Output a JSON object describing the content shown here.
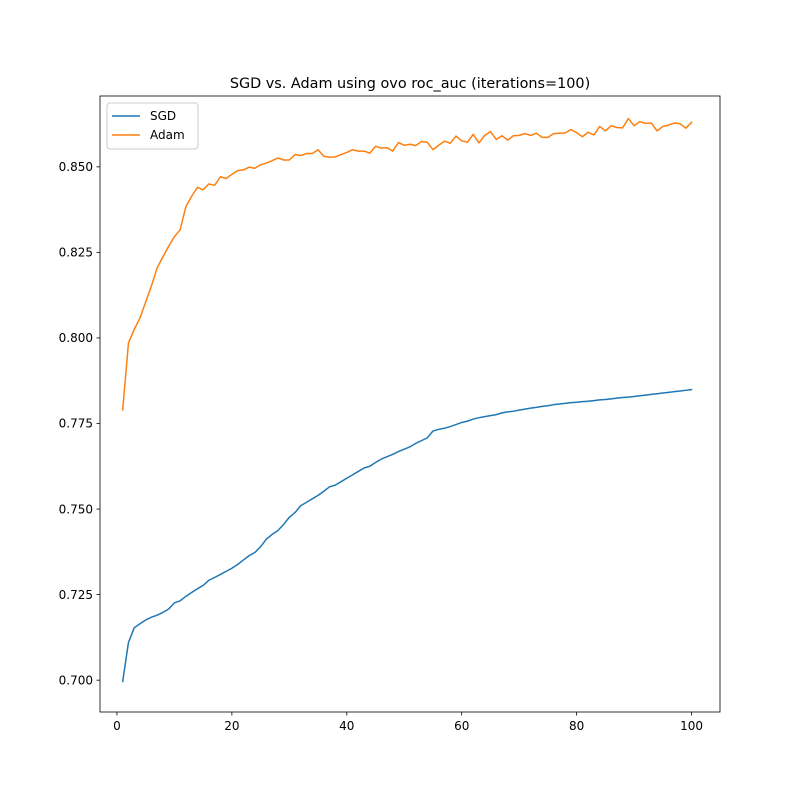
{
  "chart_data": {
    "type": "line",
    "title": "SGD vs. Adam using ovo roc_auc (iterations=100)",
    "xlabel": "",
    "ylabel": "",
    "xlim": [
      -2.95,
      104.95
    ],
    "ylim": [
      0.6907,
      0.8707
    ],
    "xticks": [
      0,
      20,
      40,
      60,
      80,
      100
    ],
    "xtick_labels": [
      "0",
      "20",
      "40",
      "60",
      "80",
      "100"
    ],
    "yticks": [
      0.7,
      0.725,
      0.75,
      0.775,
      0.8,
      0.825,
      0.85
    ],
    "ytick_labels": [
      "0.700",
      "0.725",
      "0.750",
      "0.775",
      "0.800",
      "0.825",
      "0.850"
    ],
    "grid": false,
    "legend_position": "top-left",
    "x": [
      1,
      2,
      3,
      4,
      5,
      6,
      7,
      8,
      9,
      10,
      11,
      12,
      13,
      14,
      15,
      16,
      17,
      18,
      19,
      20,
      21,
      22,
      23,
      24,
      25,
      26,
      27,
      28,
      29,
      30,
      31,
      32,
      33,
      34,
      35,
      36,
      37,
      38,
      39,
      40,
      41,
      42,
      43,
      44,
      45,
      46,
      47,
      48,
      49,
      50,
      51,
      52,
      53,
      54,
      55,
      56,
      57,
      58,
      59,
      60,
      61,
      62,
      63,
      64,
      65,
      66,
      67,
      68,
      69,
      70,
      71,
      72,
      73,
      74,
      75,
      76,
      77,
      78,
      79,
      80,
      81,
      82,
      83,
      84,
      85,
      86,
      87,
      88,
      89,
      90,
      91,
      92,
      93,
      94,
      95,
      96,
      97,
      98,
      99,
      100
    ],
    "series": [
      {
        "name": "SGD",
        "color": "#1f77b4",
        "values": [
          0.6996,
          0.711,
          0.7153,
          0.7165,
          0.7176,
          0.7184,
          0.719,
          0.7198,
          0.7208,
          0.7226,
          0.7232,
          0.7245,
          0.7256,
          0.7267,
          0.7277,
          0.7292,
          0.73,
          0.7309,
          0.7318,
          0.7327,
          0.7338,
          0.7351,
          0.7364,
          0.7373,
          0.739,
          0.7412,
          0.7426,
          0.7437,
          0.7455,
          0.7476,
          0.749,
          0.751,
          0.752,
          0.753,
          0.754,
          0.7552,
          0.7565,
          0.757,
          0.758,
          0.759,
          0.76,
          0.761,
          0.762,
          0.7625,
          0.7636,
          0.7646,
          0.7653,
          0.766,
          0.7668,
          0.7675,
          0.7682,
          0.7692,
          0.77,
          0.7708,
          0.7728,
          0.7733,
          0.7736,
          0.7741,
          0.7747,
          0.7753,
          0.7757,
          0.7763,
          0.7767,
          0.777,
          0.7773,
          0.7776,
          0.7781,
          0.7784,
          0.7786,
          0.7789,
          0.7792,
          0.7795,
          0.7797,
          0.78,
          0.7802,
          0.7805,
          0.7807,
          0.7809,
          0.7811,
          0.7812,
          0.7814,
          0.7815,
          0.7817,
          0.7819,
          0.782,
          0.7822,
          0.7824,
          0.7826,
          0.7827,
          0.7829,
          0.7831,
          0.7833,
          0.7835,
          0.7837,
          0.7839,
          0.7841,
          0.7843,
          0.7845,
          0.7847,
          0.7849
        ]
      },
      {
        "name": "Adam",
        "color": "#ff7f0e",
        "values": [
          0.779,
          0.7985,
          0.8025,
          0.8058,
          0.8105,
          0.8152,
          0.8205,
          0.8237,
          0.8268,
          0.8296,
          0.8316,
          0.8384,
          0.8414,
          0.844,
          0.8433,
          0.845,
          0.8446,
          0.8471,
          0.8466,
          0.8478,
          0.8489,
          0.8491,
          0.8499,
          0.8496,
          0.8506,
          0.8511,
          0.8518,
          0.8526,
          0.852,
          0.852,
          0.8536,
          0.8533,
          0.8539,
          0.8539,
          0.855,
          0.8531,
          0.8528,
          0.8529,
          0.8536,
          0.8542,
          0.855,
          0.8546,
          0.8546,
          0.854,
          0.856,
          0.8555,
          0.8556,
          0.8546,
          0.8571,
          0.8563,
          0.8566,
          0.8562,
          0.8574,
          0.8572,
          0.855,
          0.8563,
          0.8575,
          0.8569,
          0.859,
          0.8576,
          0.8572,
          0.8595,
          0.857,
          0.8592,
          0.8603,
          0.858,
          0.8591,
          0.8578,
          0.8591,
          0.8592,
          0.8597,
          0.8592,
          0.8598,
          0.8586,
          0.8586,
          0.8597,
          0.8598,
          0.8599,
          0.8609,
          0.86,
          0.8588,
          0.8601,
          0.8593,
          0.8618,
          0.8605,
          0.862,
          0.8615,
          0.8614,
          0.8641,
          0.862,
          0.8632,
          0.8627,
          0.8628,
          0.8605,
          0.8618,
          0.8622,
          0.8628,
          0.8626,
          0.8613,
          0.863
        ]
      }
    ]
  }
}
